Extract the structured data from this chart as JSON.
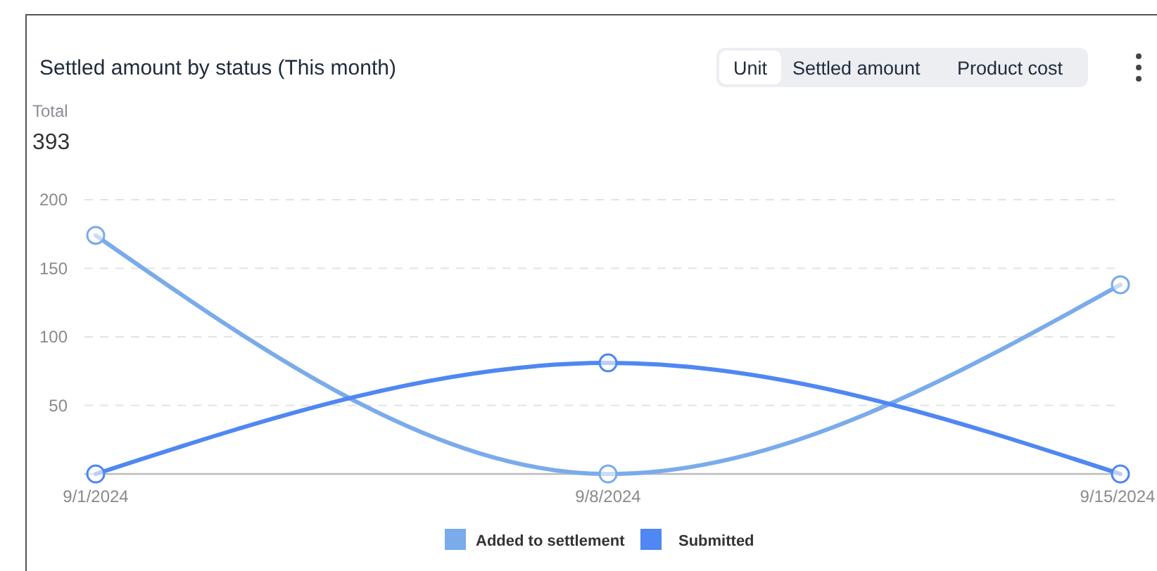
{
  "chart_data": {
    "type": "line",
    "title": "Settled amount by status (This month)",
    "annotations": [
      "Total",
      "393",
      "Unit",
      "Settled amount",
      "Product cost"
    ],
    "categories": [
      "9/1/2024",
      "9/8/2024",
      "9/15/2024"
    ],
    "series": [
      {
        "name": "Added to settlement",
        "color": "#7aabea",
        "values": [
          174,
          0,
          138
        ]
      },
      {
        "name": "Submitted",
        "color": "#4f87f3",
        "values": [
          0,
          81,
          0
        ]
      }
    ],
    "ylim": [
      0,
      200
    ],
    "yticks": [
      50,
      100,
      150,
      200
    ],
    "grid": "y",
    "legend": "bottom",
    "marker": "circle",
    "line_style": "solid"
  }
}
